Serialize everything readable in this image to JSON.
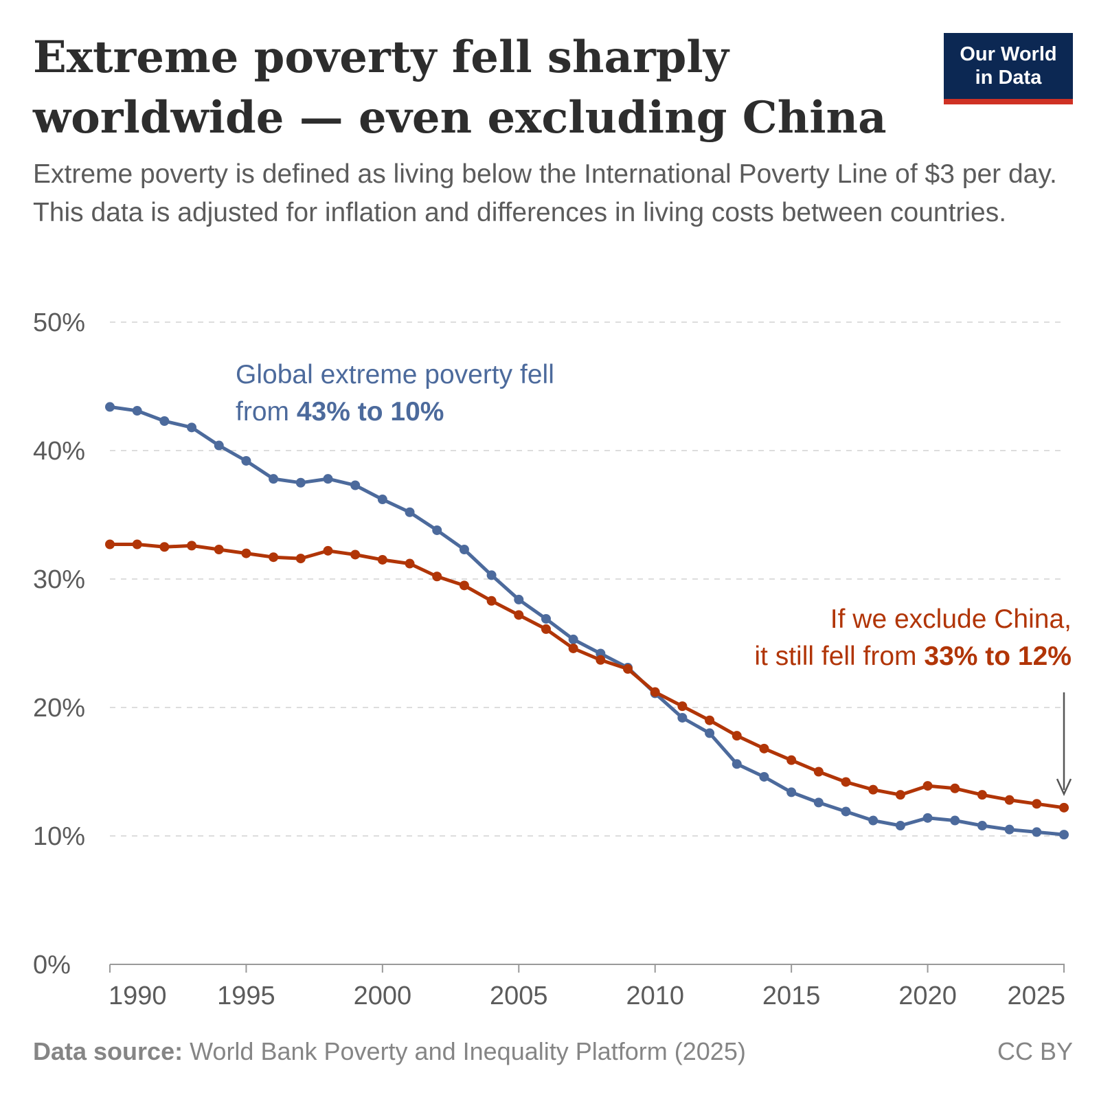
{
  "header": {
    "title": "Extreme poverty fell sharply worldwide — even excluding China",
    "subtitle": "Extreme poverty is defined as living below the International Poverty Line of $3 per day. This data is adjusted for inflation and differences in living costs between countries.",
    "logo_line1": "Our World",
    "logo_line2": "in Data"
  },
  "footer": {
    "source_label": "Data source:",
    "source_text": "World Bank Poverty and Inequality Platform (2025)",
    "license": "CC BY"
  },
  "annotations": {
    "global_line1": "Global extreme poverty fell",
    "global_line2_prefix": "from ",
    "global_line2_bold": "43% to 10%",
    "china_line1": "If we exclude China,",
    "china_line2_prefix": "it still fell from ",
    "china_line2_bold": "33% to 12%"
  },
  "colors": {
    "global": "#4c6a9c",
    "excluding_china": "#b13507",
    "grid": "#dddddd",
    "axis": "#999999",
    "arrow": "#555555"
  },
  "chart_data": {
    "type": "line",
    "xlim": [
      1990,
      2025
    ],
    "ylim": [
      0,
      50
    ],
    "x_ticks": [
      1990,
      1995,
      2000,
      2005,
      2010,
      2015,
      2020,
      2025
    ],
    "y_ticks": [
      0,
      10,
      20,
      30,
      40,
      50
    ],
    "y_tick_labels": [
      "0%",
      "10%",
      "20%",
      "30%",
      "40%",
      "50%"
    ],
    "grid": "horizontal dashed",
    "x": [
      1990,
      1991,
      1992,
      1993,
      1994,
      1995,
      1996,
      1997,
      1998,
      1999,
      2000,
      2001,
      2002,
      2003,
      2004,
      2005,
      2006,
      2007,
      2008,
      2009,
      2010,
      2011,
      2012,
      2013,
      2014,
      2015,
      2016,
      2017,
      2018,
      2019,
      2020,
      2021,
      2022,
      2023,
      2024,
      2025
    ],
    "series": [
      {
        "key": "global",
        "values": [
          43.4,
          43.1,
          42.3,
          41.8,
          40.4,
          39.2,
          37.8,
          37.5,
          37.8,
          37.3,
          36.2,
          35.2,
          33.8,
          32.3,
          30.3,
          28.4,
          26.9,
          25.3,
          24.2,
          23.1,
          21.1,
          19.2,
          18.0,
          15.6,
          14.6,
          13.4,
          12.6,
          11.9,
          11.2,
          10.8,
          11.4,
          11.2,
          10.8,
          10.5,
          10.3,
          10.1
        ]
      },
      {
        "key": "excluding_china",
        "values": [
          32.7,
          32.7,
          32.5,
          32.6,
          32.3,
          32.0,
          31.7,
          31.6,
          32.2,
          31.9,
          31.5,
          31.2,
          30.2,
          29.5,
          28.3,
          27.2,
          26.1,
          24.6,
          23.7,
          23.0,
          21.2,
          20.1,
          19.0,
          17.8,
          16.8,
          15.9,
          15.0,
          14.2,
          13.6,
          13.2,
          13.9,
          13.7,
          13.2,
          12.8,
          12.5,
          12.2
        ]
      }
    ]
  }
}
